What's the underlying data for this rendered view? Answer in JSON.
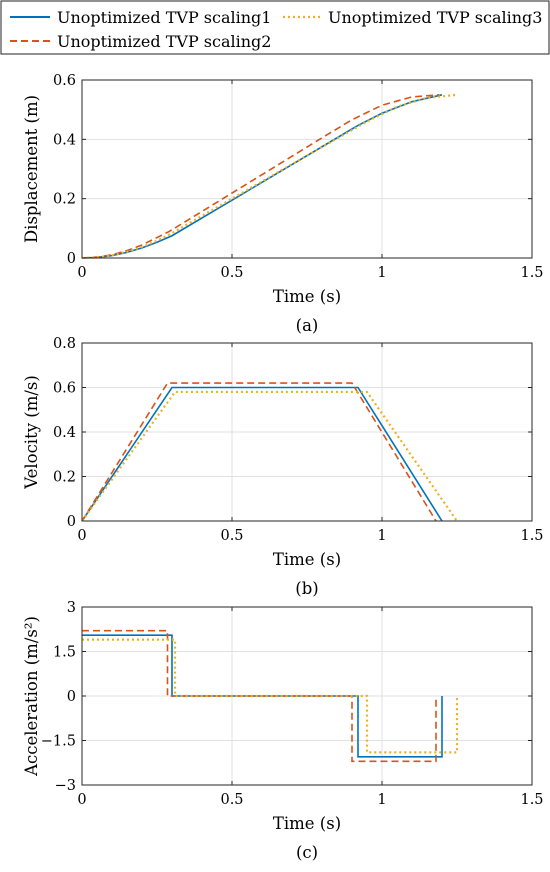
{
  "legend": {
    "entries": [
      {
        "name": "Unoptimized TVP scaling1",
        "color": "#0072BD",
        "dash": "solid"
      },
      {
        "name": "Unoptimized TVP scaling2",
        "color": "#D95319",
        "dash": "dashed"
      },
      {
        "name": "Unoptimized TVP scaling3",
        "color": "#EDB120",
        "dash": "dotted"
      }
    ]
  },
  "chart_data": [
    {
      "type": "line",
      "panel_label": "(a)",
      "xlabel": "Time (s)",
      "ylabel": "Displacement (m)",
      "xlim": [
        0,
        1.5
      ],
      "ylim": [
        0,
        0.6
      ],
      "xticks": [
        "0",
        "0.5",
        "1",
        "1.5"
      ],
      "yticks": [
        "0",
        "0.2",
        "0.4",
        "0.6"
      ],
      "grid": true,
      "series": [
        {
          "name": "Unoptimized TVP scaling1",
          "x": [
            0,
            0.05,
            0.1,
            0.15,
            0.2,
            0.25,
            0.3,
            0.4,
            0.5,
            0.6,
            0.7,
            0.8,
            0.92,
            1.0,
            1.1,
            1.2
          ],
          "y": [
            0,
            0.002,
            0.008,
            0.019,
            0.034,
            0.053,
            0.075,
            0.135,
            0.195,
            0.255,
            0.315,
            0.375,
            0.447,
            0.488,
            0.527,
            0.55
          ]
        },
        {
          "name": "Unoptimized TVP scaling2",
          "x": [
            0,
            0.05,
            0.1,
            0.15,
            0.2,
            0.25,
            0.29,
            0.4,
            0.5,
            0.6,
            0.7,
            0.8,
            0.9,
            1.0,
            1.1,
            1.19
          ],
          "y": [
            0,
            0.003,
            0.011,
            0.025,
            0.044,
            0.069,
            0.089,
            0.157,
            0.219,
            0.281,
            0.343,
            0.405,
            0.466,
            0.515,
            0.543,
            0.55
          ]
        },
        {
          "name": "Unoptimized TVP scaling3",
          "x": [
            0,
            0.05,
            0.1,
            0.15,
            0.2,
            0.25,
            0.3,
            0.31,
            0.4,
            0.5,
            0.6,
            0.7,
            0.8,
            0.95,
            1.05,
            1.15,
            1.25
          ],
          "y": [
            0,
            0.002,
            0.009,
            0.021,
            0.037,
            0.058,
            0.084,
            0.09,
            0.142,
            0.2,
            0.258,
            0.316,
            0.374,
            0.46,
            0.51,
            0.54,
            0.55
          ]
        }
      ]
    },
    {
      "type": "line",
      "panel_label": "(b)",
      "xlabel": "Time (s)",
      "ylabel": "Velocity (m/s)",
      "xlim": [
        0,
        1.5
      ],
      "ylim": [
        0,
        0.8
      ],
      "xticks": [
        "0",
        "0.5",
        "1",
        "1.5"
      ],
      "yticks": [
        "0",
        "0.2",
        "0.4",
        "0.6",
        "0.8"
      ],
      "grid": true,
      "series": [
        {
          "name": "Unoptimized TVP scaling1",
          "x": [
            0,
            0.3,
            0.92,
            1.2
          ],
          "y": [
            0,
            0.6,
            0.6,
            0
          ]
        },
        {
          "name": "Unoptimized TVP scaling2",
          "x": [
            0,
            0.285,
            0.9,
            1.18
          ],
          "y": [
            0,
            0.62,
            0.62,
            0
          ]
        },
        {
          "name": "Unoptimized TVP scaling3",
          "x": [
            0,
            0.31,
            0.95,
            1.25
          ],
          "y": [
            0,
            0.58,
            0.58,
            0
          ]
        }
      ]
    },
    {
      "type": "line",
      "panel_label": "(c)",
      "xlabel": "Time (s)",
      "ylabel": "Acceleration (m/s²)",
      "xlim": [
        0,
        1.5
      ],
      "ylim": [
        -3,
        3
      ],
      "xticks": [
        "0",
        "0.5",
        "1",
        "1.5"
      ],
      "yticks": [
        "−3",
        "−1.5",
        "0",
        "1.5",
        "3"
      ],
      "grid": true,
      "series": [
        {
          "name": "Unoptimized TVP scaling1",
          "x": [
            0,
            0.3,
            0.3,
            0.92,
            0.92,
            1.2,
            1.2
          ],
          "y": [
            2.05,
            2.05,
            0,
            0,
            -2.05,
            -2.05,
            0
          ]
        },
        {
          "name": "Unoptimized TVP scaling2",
          "x": [
            0,
            0.285,
            0.285,
            0.9,
            0.9,
            1.18,
            1.18
          ],
          "y": [
            2.2,
            2.2,
            0,
            0,
            -2.2,
            -2.2,
            0
          ]
        },
        {
          "name": "Unoptimized TVP scaling3",
          "x": [
            0,
            0.31,
            0.31,
            0.95,
            0.95,
            1.25,
            1.25
          ],
          "y": [
            1.9,
            1.9,
            0,
            0,
            -1.9,
            -1.9,
            0
          ]
        }
      ]
    }
  ]
}
